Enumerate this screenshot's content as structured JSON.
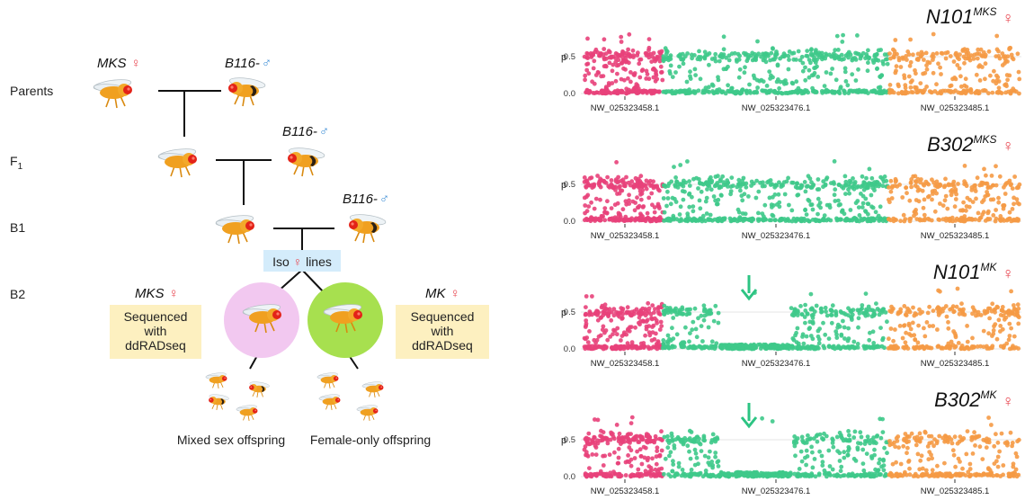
{
  "cross": {
    "generations": [
      "Parents",
      "F",
      "B1",
      "B2"
    ],
    "f1_subscript": "1",
    "parent_female": "MKS",
    "parent_male": "B116-",
    "backcross_male": "B116-",
    "female_symbol": "♀",
    "male_symbol": "♂",
    "iso_lines": {
      "pre": "Iso",
      "post": "lines"
    },
    "mks_label": "MKS",
    "mk_label": "MK",
    "seq_box_lines": [
      "Sequenced",
      "with",
      "ddRADseq"
    ],
    "mixed_caption": "Mixed sex offspring",
    "female_caption": "Female-only offspring"
  },
  "colors": {
    "contig1": "#e8417a",
    "contig2": "#3ec98a",
    "contig3": "#f59a45",
    "mks_circle": "#f2c8f0",
    "mk_circle": "#a7e04f",
    "box_fill": "#fdf0c0",
    "iso_fill": "#d4ecfb",
    "arrow": "#2dc483",
    "fly_body": "#f0a020",
    "fly_eye": "#e32218"
  },
  "panels": [
    {
      "title": "N101",
      "superscript": "MKS",
      "symbol": "♀",
      "arrow": false
    },
    {
      "title": "B302",
      "superscript": "MKS",
      "symbol": "♀",
      "arrow": false
    },
    {
      "title": "N101",
      "superscript": "MK",
      "symbol": "♀",
      "arrow": true
    },
    {
      "title": "B302",
      "superscript": "MK",
      "symbol": "♀",
      "arrow": true
    }
  ],
  "chart_data": {
    "type": "scatter",
    "ylabel": "p",
    "yticks": [
      "0.5",
      "0.0"
    ],
    "ylim": [
      0,
      0.8
    ],
    "contigs": [
      "NW_025323458.1",
      "NW_025323476.1",
      "NW_025323485.1"
    ],
    "grid": true
  }
}
